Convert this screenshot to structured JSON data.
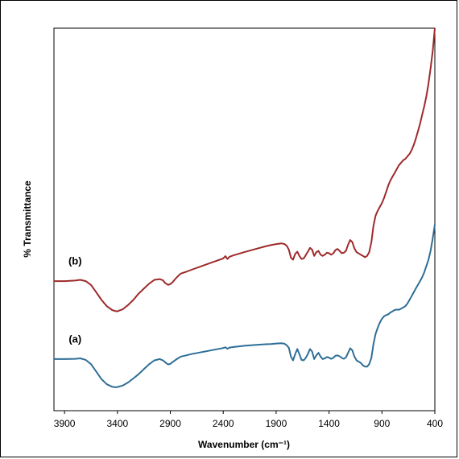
{
  "chart_data": {
    "type": "line",
    "title": "",
    "xlabel": "Wavenumber (cm⁻¹)",
    "ylabel": "% Transmittance",
    "xlim": [
      4000,
      400
    ],
    "x_reversed": true,
    "xticks": [
      3900,
      3400,
      2900,
      2400,
      1900,
      1400,
      900,
      400
    ],
    "y_tick_labels": false,
    "grid": false,
    "series_colors": {
      "a": "#2e6e96",
      "b": "#9e2a2b"
    },
    "series": [
      {
        "name": "(a)",
        "x": [
          4000,
          3900,
          3800,
          3750,
          3700,
          3650,
          3600,
          3550,
          3500,
          3450,
          3420,
          3400,
          3350,
          3300,
          3250,
          3200,
          3150,
          3100,
          3050,
          3000,
          2970,
          2950,
          2930,
          2920,
          2900,
          2880,
          2850,
          2820,
          2800,
          2750,
          2700,
          2600,
          2500,
          2400,
          2380,
          2360,
          2340,
          2300,
          2200,
          2100,
          2000,
          1950,
          1900,
          1850,
          1820,
          1800,
          1780,
          1760,
          1740,
          1720,
          1700,
          1680,
          1660,
          1640,
          1620,
          1600,
          1580,
          1560,
          1540,
          1520,
          1500,
          1480,
          1460,
          1440,
          1420,
          1400,
          1380,
          1360,
          1340,
          1320,
          1300,
          1280,
          1260,
          1240,
          1220,
          1200,
          1180,
          1160,
          1140,
          1120,
          1100,
          1080,
          1060,
          1040,
          1020,
          1000,
          980,
          960,
          940,
          920,
          900,
          880,
          860,
          840,
          820,
          800,
          780,
          760,
          740,
          720,
          700,
          680,
          660,
          640,
          620,
          600,
          580,
          560,
          540,
          520,
          500,
          480,
          460,
          440,
          420,
          400
        ],
        "y": [
          80.5,
          80.5,
          80.6,
          80.8,
          80.2,
          78.5,
          75.5,
          72.5,
          70.5,
          69.5,
          69.3,
          69.4,
          70.0,
          71.2,
          72.8,
          74.5,
          76.5,
          78.5,
          80.0,
          80.5,
          80.0,
          79.3,
          78.6,
          78.4,
          78.6,
          79.3,
          80.2,
          81.0,
          81.5,
          82.0,
          82.5,
          83.3,
          84.1,
          84.9,
          85.2,
          84.6,
          85.1,
          85.3,
          85.8,
          86.1,
          86.4,
          86.5,
          86.7,
          86.8,
          86.6,
          86.0,
          85.0,
          81.5,
          80.0,
          82.5,
          84.5,
          82.5,
          80.2,
          80.0,
          81.0,
          82.5,
          84.5,
          83.5,
          80.5,
          82.0,
          83.0,
          81.5,
          80.5,
          80.8,
          81.3,
          81.1,
          80.6,
          81.0,
          81.8,
          82.0,
          81.6,
          81.0,
          80.6,
          81.2,
          83.0,
          84.8,
          84.0,
          81.5,
          80.0,
          79.5,
          79.0,
          78.0,
          77.5,
          77.5,
          78.5,
          81.0,
          86.5,
          90.5,
          93.0,
          95.0,
          96.5,
          97.5,
          98.0,
          98.3,
          99.0,
          99.5,
          100.0,
          100.2,
          100.1,
          100.5,
          101.0,
          101.5,
          102.5,
          104.0,
          105.5,
          107.0,
          108.5,
          110.0,
          111.5,
          113.0,
          115.0,
          117.5,
          120.0,
          123.5,
          128.5,
          134.0
        ]
      },
      {
        "name": "(b)",
        "x": [
          4000,
          3900,
          3800,
          3750,
          3700,
          3650,
          3600,
          3550,
          3500,
          3450,
          3420,
          3400,
          3350,
          3300,
          3250,
          3200,
          3150,
          3100,
          3050,
          3000,
          2970,
          2950,
          2930,
          2920,
          2900,
          2880,
          2850,
          2820,
          2800,
          2750,
          2700,
          2600,
          2500,
          2400,
          2380,
          2360,
          2340,
          2300,
          2200,
          2100,
          2000,
          1950,
          1900,
          1850,
          1820,
          1800,
          1780,
          1760,
          1740,
          1720,
          1700,
          1680,
          1660,
          1640,
          1620,
          1600,
          1580,
          1560,
          1540,
          1520,
          1500,
          1480,
          1460,
          1440,
          1420,
          1400,
          1380,
          1360,
          1340,
          1320,
          1300,
          1280,
          1260,
          1240,
          1220,
          1200,
          1180,
          1160,
          1140,
          1120,
          1100,
          1080,
          1060,
          1040,
          1020,
          1000,
          980,
          960,
          940,
          920,
          900,
          880,
          860,
          840,
          820,
          800,
          780,
          760,
          740,
          720,
          700,
          680,
          660,
          640,
          620,
          600,
          580,
          560,
          540,
          520,
          500,
          480,
          460,
          440,
          420,
          400
        ],
        "y": [
          111.5,
          111.5,
          111.7,
          112.0,
          111.5,
          110.0,
          107.0,
          104.0,
          101.5,
          100.0,
          99.6,
          99.5,
          100.3,
          102.0,
          104.0,
          106.5,
          108.5,
          110.5,
          112.0,
          112.3,
          111.8,
          110.8,
          110.2,
          110.0,
          110.3,
          111.0,
          112.5,
          113.8,
          114.5,
          115.2,
          116.0,
          117.5,
          119.0,
          120.5,
          121.4,
          120.3,
          121.2,
          121.8,
          123.0,
          124.2,
          125.3,
          125.8,
          126.2,
          126.5,
          126.2,
          125.5,
          124.0,
          120.8,
          120.0,
          122.3,
          123.2,
          121.5,
          120.3,
          120.5,
          121.8,
          123.2,
          124.7,
          124.0,
          121.5,
          123.0,
          123.5,
          122.0,
          121.5,
          122.0,
          122.8,
          122.6,
          122.0,
          122.5,
          123.8,
          124.3,
          123.5,
          122.6,
          122.8,
          123.5,
          126.0,
          127.8,
          127.0,
          124.5,
          123.0,
          122.5,
          122.0,
          121.5,
          121.0,
          121.5,
          123.0,
          127.0,
          133.5,
          137.5,
          139.5,
          141.0,
          142.5,
          144.5,
          147.0,
          149.5,
          151.5,
          153.0,
          154.5,
          156.0,
          157.5,
          158.5,
          159.5,
          160.0,
          161.0,
          162.0,
          163.5,
          165.5,
          168.0,
          171.0,
          174.0,
          177.5,
          181.0,
          185.0,
          190.0,
          196.0,
          203.0,
          212.0
        ]
      }
    ],
    "ylim": [
      60,
      212
    ],
    "annotations": [
      {
        "text": "(a)",
        "series": "a"
      },
      {
        "text": "(b)",
        "series": "b"
      }
    ]
  }
}
